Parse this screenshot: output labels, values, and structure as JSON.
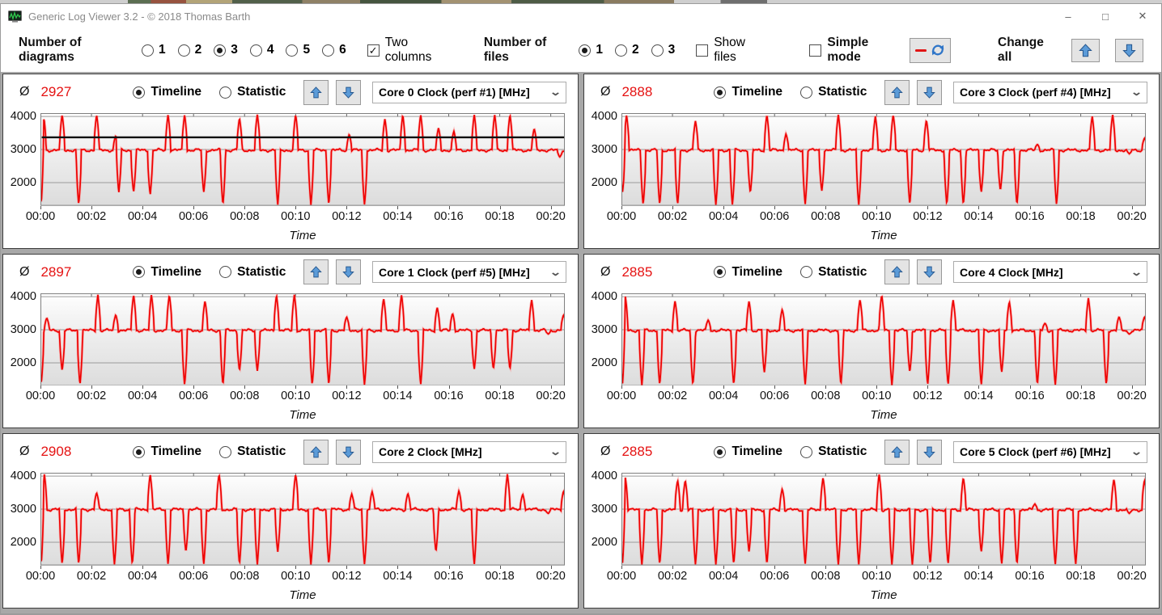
{
  "window": {
    "title": "Generic Log Viewer 3.2 - © 2018 Thomas Barth",
    "controls": [
      {
        "name": "minimize",
        "glyph": "–"
      },
      {
        "name": "maximize",
        "glyph": "□"
      },
      {
        "name": "close",
        "glyph": "✕"
      }
    ]
  },
  "toolbar": {
    "diagrams_label": "Number of diagrams",
    "diagram_options": [
      "1",
      "2",
      "3",
      "4",
      "5",
      "6"
    ],
    "diagrams_selected": "3",
    "two_columns_label": "Two columns",
    "two_columns_checked": true,
    "files_label": "Number of files",
    "file_options": [
      "1",
      "2",
      "3"
    ],
    "files_selected": "1",
    "show_files_label": "Show files",
    "show_files_checked": false,
    "simple_mode_label": "Simple mode",
    "simple_mode_checked": false,
    "change_all_label": "Change all"
  },
  "icons": {
    "check_glyph": "✓",
    "chevron_glyph": "⌄"
  },
  "panel_ui": {
    "avg_symbol": "Ø",
    "timeline_label": "Timeline",
    "statistic_label": "Statistic",
    "mode_selected": "Timeline"
  },
  "colors": {
    "series_red": "#ee0000",
    "average_red": "#e51212",
    "arrow_blue": "#4f93d8",
    "reference_black": "#111111",
    "grid_gray": "#9a9a9a",
    "panel_border": "#3c3c3c",
    "gap_gray": "#a8a8a8"
  },
  "panels": [
    {
      "avg": "2927",
      "signal": "Core 0 Clock (perf #1) [MHz]",
      "mode": "Timeline"
    },
    {
      "avg": "2888",
      "signal": "Core 3 Clock (perf #4) [MHz]",
      "mode": "Timeline"
    },
    {
      "avg": "2897",
      "signal": "Core 1 Clock (perf #5) [MHz]",
      "mode": "Timeline"
    },
    {
      "avg": "2885",
      "signal": "Core 4 Clock [MHz]",
      "mode": "Timeline"
    },
    {
      "avg": "2908",
      "signal": "Core 2 Clock [MHz]",
      "mode": "Timeline"
    },
    {
      "avg": "2885",
      "signal": "Core 5 Clock (perf #6) [MHz]",
      "mode": "Timeline"
    }
  ],
  "chart_data": [
    {
      "type": "line",
      "title": "Core 0 Clock (perf #1) [MHz]",
      "xlabel": "Time",
      "x_ticks": [
        "00:00",
        "00:02",
        "00:04",
        "00:06",
        "00:08",
        "00:10",
        "00:12",
        "00:14",
        "00:16",
        "00:18",
        "00:20"
      ],
      "y_ticks": [
        4000,
        3000,
        2000
      ],
      "ylim": [
        1300,
        4100
      ],
      "xlim_minutes": [
        0,
        20.55
      ],
      "grid": true,
      "baseline_mhz": 2980,
      "average": 2927,
      "reference_line": 3370,
      "spikes_up": [
        [
          0.12,
          4060
        ],
        [
          0.85,
          4060
        ],
        [
          2.2,
          4060
        ],
        [
          2.95,
          3420
        ],
        [
          5.0,
          4060
        ],
        [
          5.65,
          4060
        ],
        [
          7.8,
          3960
        ],
        [
          8.5,
          4060
        ],
        [
          10.0,
          4060
        ],
        [
          12.1,
          3470
        ],
        [
          13.5,
          3930
        ],
        [
          14.2,
          4060
        ],
        [
          14.9,
          4060
        ],
        [
          15.6,
          3660
        ],
        [
          16.2,
          3560
        ],
        [
          17.0,
          4060
        ],
        [
          17.8,
          4060
        ],
        [
          18.4,
          4060
        ],
        [
          19.35,
          3640
        ]
      ],
      "spikes_down": [
        [
          0.03,
          1350
        ],
        [
          1.5,
          1320
        ],
        [
          3.07,
          1700
        ],
        [
          3.65,
          1700
        ],
        [
          4.3,
          1620
        ],
        [
          6.4,
          1700
        ],
        [
          7.15,
          1320
        ],
        [
          9.3,
          1320
        ],
        [
          10.6,
          1320
        ],
        [
          11.3,
          1320
        ],
        [
          12.7,
          1320
        ],
        [
          20.35,
          2770
        ]
      ]
    },
    {
      "type": "line",
      "title": "Core 3 Clock (perf #4) [MHz]",
      "xlabel": "Time",
      "x_ticks": [
        "00:00",
        "00:02",
        "00:04",
        "00:06",
        "00:08",
        "00:10",
        "00:12",
        "00:14",
        "00:16",
        "00:18",
        "00:20"
      ],
      "y_ticks": [
        4000,
        3000,
        2000
      ],
      "ylim": [
        1300,
        4100
      ],
      "xlim_minutes": [
        0,
        20.55
      ],
      "grid": true,
      "baseline_mhz": 2980,
      "average": 2888,
      "reference_line": null,
      "spikes_up": [
        [
          0.2,
          4060
        ],
        [
          2.9,
          3870
        ],
        [
          5.7,
          4060
        ],
        [
          6.45,
          3480
        ],
        [
          8.5,
          4060
        ],
        [
          9.95,
          4010
        ],
        [
          10.65,
          4060
        ],
        [
          11.95,
          3900
        ],
        [
          16.3,
          3160
        ],
        [
          18.45,
          4010
        ],
        [
          19.25,
          4060
        ],
        [
          20.5,
          3360
        ]
      ],
      "spikes_down": [
        [
          0.04,
          1700
        ],
        [
          0.85,
          1320
        ],
        [
          1.5,
          1320
        ],
        [
          2.2,
          1320
        ],
        [
          3.7,
          1320
        ],
        [
          4.35,
          1320
        ],
        [
          5.05,
          1680
        ],
        [
          7.2,
          1320
        ],
        [
          7.85,
          1740
        ],
        [
          9.3,
          1320
        ],
        [
          11.3,
          1320
        ],
        [
          12.75,
          1320
        ],
        [
          13.4,
          1320
        ],
        [
          14.1,
          1700
        ],
        [
          14.85,
          1750
        ],
        [
          15.5,
          1320
        ],
        [
          17.05,
          1320
        ],
        [
          19.9,
          2870
        ]
      ]
    },
    {
      "type": "line",
      "title": "Core 1 Clock (perf #5) [MHz]",
      "xlabel": "Time",
      "x_ticks": [
        "00:00",
        "00:02",
        "00:04",
        "00:06",
        "00:08",
        "00:10",
        "00:12",
        "00:14",
        "00:16",
        "00:18",
        "00:20"
      ],
      "y_ticks": [
        4000,
        3000,
        2000
      ],
      "ylim": [
        1300,
        4100
      ],
      "xlim_minutes": [
        0,
        20.55
      ],
      "grid": true,
      "baseline_mhz": 2980,
      "average": 2897,
      "reference_line": null,
      "spikes_up": [
        [
          0.25,
          3360
        ],
        [
          2.25,
          4060
        ],
        [
          2.95,
          3460
        ],
        [
          3.65,
          4060
        ],
        [
          4.35,
          4060
        ],
        [
          5.05,
          4060
        ],
        [
          6.45,
          3870
        ],
        [
          9.25,
          4060
        ],
        [
          9.95,
          4060
        ],
        [
          12.0,
          3390
        ],
        [
          13.45,
          3950
        ],
        [
          14.15,
          4060
        ],
        [
          15.55,
          3680
        ],
        [
          16.15,
          3500
        ],
        [
          19.25,
          3910
        ],
        [
          20.5,
          3460
        ]
      ],
      "spikes_down": [
        [
          0.03,
          1350
        ],
        [
          0.85,
          1750
        ],
        [
          1.55,
          1320
        ],
        [
          5.65,
          1320
        ],
        [
          7.15,
          1320
        ],
        [
          7.8,
          1750
        ],
        [
          8.5,
          1750
        ],
        [
          10.65,
          1320
        ],
        [
          11.3,
          1320
        ],
        [
          12.7,
          1320
        ],
        [
          14.9,
          1320
        ],
        [
          17.0,
          1800
        ],
        [
          17.75,
          1800
        ],
        [
          18.4,
          1800
        ],
        [
          19.9,
          2870
        ]
      ]
    },
    {
      "type": "line",
      "title": "Core 4 Clock [MHz]",
      "xlabel": "Time",
      "x_ticks": [
        "00:00",
        "00:02",
        "00:04",
        "00:06",
        "00:08",
        "00:10",
        "00:12",
        "00:14",
        "00:16",
        "00:18",
        "00:20"
      ],
      "y_ticks": [
        4000,
        3000,
        2000
      ],
      "ylim": [
        1300,
        4100
      ],
      "xlim_minutes": [
        0,
        20.55
      ],
      "grid": true,
      "baseline_mhz": 2980,
      "average": 2885,
      "reference_line": null,
      "spikes_up": [
        [
          0.15,
          4010
        ],
        [
          2.1,
          3870
        ],
        [
          3.4,
          3300
        ],
        [
          5.0,
          3870
        ],
        [
          6.3,
          3620
        ],
        [
          9.35,
          3920
        ],
        [
          10.2,
          4060
        ],
        [
          13.0,
          3900
        ],
        [
          15.2,
          3860
        ],
        [
          16.6,
          3200
        ],
        [
          18.3,
          3960
        ],
        [
          19.5,
          3400
        ],
        [
          20.5,
          3400
        ]
      ],
      "spikes_down": [
        [
          0.04,
          1350
        ],
        [
          0.8,
          1320
        ],
        [
          1.5,
          1320
        ],
        [
          2.8,
          1320
        ],
        [
          4.4,
          1320
        ],
        [
          5.6,
          1700
        ],
        [
          7.2,
          1320
        ],
        [
          8.6,
          1320
        ],
        [
          10.6,
          1320
        ],
        [
          11.3,
          1700
        ],
        [
          12.0,
          1320
        ],
        [
          12.8,
          1320
        ],
        [
          14.1,
          1320
        ],
        [
          14.9,
          1700
        ],
        [
          16.3,
          1320
        ],
        [
          17.0,
          1320
        ],
        [
          19.0,
          1320
        ],
        [
          19.9,
          2870
        ]
      ]
    },
    {
      "type": "line",
      "title": "Core 2 Clock [MHz]",
      "xlabel": "Time",
      "x_ticks": [
        "00:00",
        "00:02",
        "00:04",
        "00:06",
        "00:08",
        "00:10",
        "00:12",
        "00:14",
        "00:16",
        "00:18",
        "00:20"
      ],
      "y_ticks": [
        4000,
        3000,
        2000
      ],
      "ylim": [
        1300,
        4100
      ],
      "xlim_minutes": [
        0,
        20.55
      ],
      "grid": true,
      "baseline_mhz": 2990,
      "average": 2908,
      "reference_line": null,
      "spikes_up": [
        [
          0.15,
          4060
        ],
        [
          2.2,
          3500
        ],
        [
          4.3,
          4060
        ],
        [
          7.0,
          4060
        ],
        [
          10.0,
          4060
        ],
        [
          12.2,
          3460
        ],
        [
          13.0,
          3530
        ],
        [
          14.4,
          3480
        ],
        [
          16.4,
          3560
        ],
        [
          18.3,
          4060
        ],
        [
          18.9,
          3460
        ],
        [
          20.5,
          3560
        ]
      ],
      "spikes_down": [
        [
          0.03,
          1350
        ],
        [
          0.85,
          1320
        ],
        [
          1.5,
          1320
        ],
        [
          2.9,
          1320
        ],
        [
          3.6,
          1320
        ],
        [
          5.0,
          1320
        ],
        [
          5.7,
          1700
        ],
        [
          6.4,
          1320
        ],
        [
          7.8,
          1320
        ],
        [
          8.5,
          1320
        ],
        [
          9.3,
          1700
        ],
        [
          10.6,
          1320
        ],
        [
          11.3,
          1320
        ],
        [
          12.7,
          1320
        ],
        [
          15.5,
          1700
        ],
        [
          17.0,
          1320
        ],
        [
          19.9,
          2870
        ]
      ]
    },
    {
      "type": "line",
      "title": "Core 5 Clock (perf #6) [MHz]",
      "xlabel": "Time",
      "x_ticks": [
        "00:00",
        "00:02",
        "00:04",
        "00:06",
        "00:08",
        "00:10",
        "00:12",
        "00:14",
        "00:16",
        "00:18",
        "00:20"
      ],
      "y_ticks": [
        4000,
        3000,
        2000
      ],
      "ylim": [
        1300,
        4100
      ],
      "xlim_minutes": [
        0,
        20.55
      ],
      "grid": true,
      "baseline_mhz": 2980,
      "average": 2885,
      "reference_line": null,
      "spikes_up": [
        [
          0.15,
          3960
        ],
        [
          2.2,
          3880
        ],
        [
          2.5,
          3880
        ],
        [
          6.3,
          3620
        ],
        [
          7.9,
          3960
        ],
        [
          10.1,
          4060
        ],
        [
          13.4,
          3960
        ],
        [
          16.2,
          3160
        ],
        [
          19.3,
          3910
        ],
        [
          20.5,
          3900
        ]
      ],
      "spikes_down": [
        [
          0.04,
          1350
        ],
        [
          0.8,
          1320
        ],
        [
          1.5,
          1320
        ],
        [
          2.9,
          1320
        ],
        [
          3.7,
          1320
        ],
        [
          4.4,
          1320
        ],
        [
          5.0,
          1700
        ],
        [
          5.7,
          1320
        ],
        [
          7.2,
          1320
        ],
        [
          8.5,
          1320
        ],
        [
          9.3,
          1320
        ],
        [
          10.6,
          1320
        ],
        [
          11.4,
          1320
        ],
        [
          12.1,
          1320
        ],
        [
          12.8,
          1320
        ],
        [
          14.1,
          1700
        ],
        [
          14.9,
          1320
        ],
        [
          15.5,
          1320
        ],
        [
          17.0,
          1320
        ],
        [
          17.8,
          1320
        ],
        [
          19.9,
          2870
        ]
      ]
    }
  ]
}
